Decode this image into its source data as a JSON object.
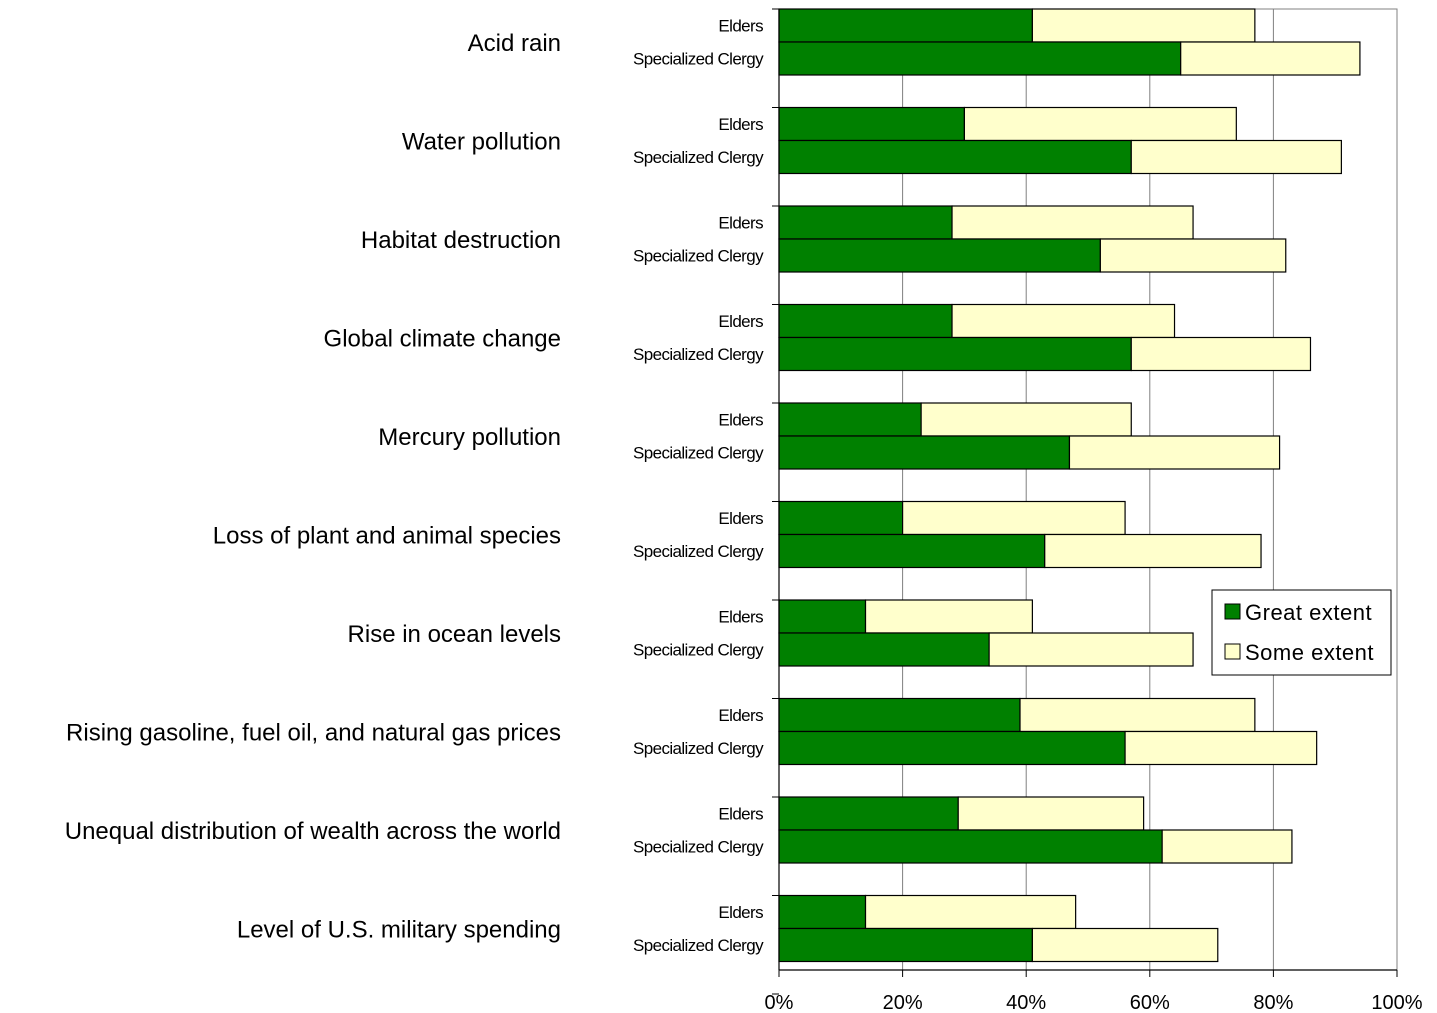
{
  "chart_data": {
    "type": "bar",
    "orientation": "horizontal",
    "stacked": true,
    "categories": [
      "Acid rain",
      "Water pollution",
      "Habitat destruction",
      "Global climate change",
      "Mercury pollution",
      "Loss of plant and animal species",
      "Rise in ocean levels",
      "Rising gasoline, fuel oil, and natural gas prices",
      "Unequal distribution of wealth across the world",
      "Level of U.S. military spending"
    ],
    "groups": [
      "Elders",
      "Specialized Clergy"
    ],
    "series": [
      {
        "name": "Great extent",
        "color": "#008000",
        "values": {
          "Elders": [
            41,
            30,
            28,
            28,
            23,
            20,
            14,
            39,
            29,
            14
          ],
          "Specialized Clergy": [
            65,
            57,
            52,
            57,
            47,
            43,
            34,
            56,
            62,
            41
          ]
        }
      },
      {
        "name": "Some extent",
        "color": "#FFFFCC",
        "values": {
          "Elders": [
            36,
            44,
            39,
            36,
            34,
            36,
            27,
            38,
            30,
            34
          ],
          "Specialized Clergy": [
            29,
            34,
            30,
            29,
            34,
            35,
            33,
            31,
            21,
            30
          ]
        }
      }
    ],
    "xlim": [
      0,
      100
    ],
    "xticks": [
      "0%",
      "20%",
      "40%",
      "60%",
      "80%",
      "100%"
    ],
    "grid": "vertical",
    "legend": "right-middle"
  }
}
